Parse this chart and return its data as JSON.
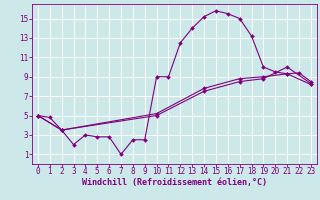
{
  "background_color": "#cce8e8",
  "line_color": "#800080",
  "grid_color": "#ffffff",
  "xlabel": "Windchill (Refroidissement éolien,°C)",
  "xlabel_fontsize": 6.0,
  "tick_fontsize": 5.5,
  "xlim": [
    -0.5,
    23.5
  ],
  "ylim": [
    0,
    16.5
  ],
  "xticks": [
    0,
    1,
    2,
    3,
    4,
    5,
    6,
    7,
    8,
    9,
    10,
    11,
    12,
    13,
    14,
    15,
    16,
    17,
    18,
    19,
    20,
    21,
    22,
    23
  ],
  "yticks": [
    1,
    3,
    5,
    7,
    9,
    11,
    13,
    15
  ],
  "line1_x": [
    0,
    1,
    2,
    3,
    4,
    5,
    6,
    7,
    8,
    9,
    10,
    11,
    12,
    13,
    14,
    15,
    16,
    17,
    18,
    19,
    20,
    21,
    22,
    23
  ],
  "line1_y": [
    5.0,
    4.8,
    3.5,
    2.0,
    3.0,
    2.8,
    2.8,
    1.0,
    2.5,
    2.5,
    9.0,
    9.0,
    12.5,
    14.0,
    15.2,
    15.8,
    15.5,
    15.0,
    13.2,
    10.0,
    9.5,
    9.3,
    9.4,
    8.5
  ],
  "line2_x": [
    0,
    2,
    10,
    14,
    17,
    19,
    21,
    23
  ],
  "line2_y": [
    5.0,
    3.5,
    5.0,
    7.5,
    8.5,
    8.8,
    10.0,
    8.3
  ],
  "line3_x": [
    0,
    2,
    10,
    14,
    17,
    19,
    21,
    23
  ],
  "line3_y": [
    5.0,
    3.5,
    5.2,
    7.8,
    8.8,
    9.0,
    9.3,
    8.2
  ]
}
